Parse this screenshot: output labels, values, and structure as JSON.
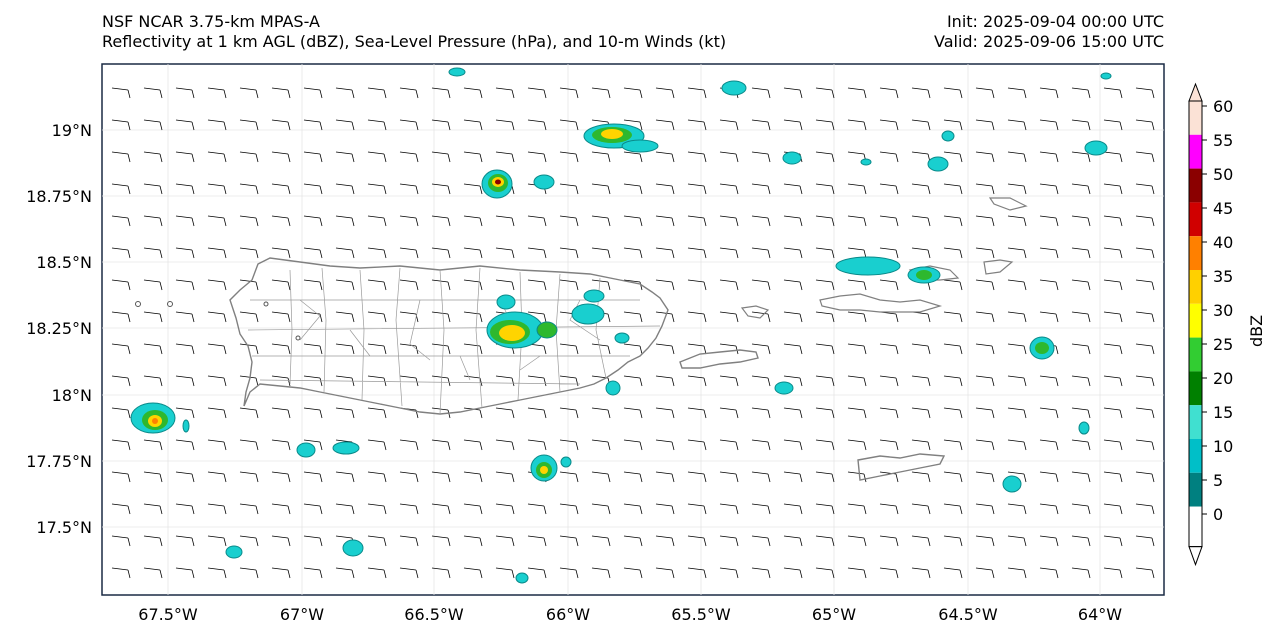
{
  "header": {
    "title_line1": "NSF NCAR 3.75-km MPAS-A",
    "title_line2": "Reflectivity at 1 km AGL (dBZ), Sea-Level Pressure (hPa), and 10-m Winds (kt)",
    "init": "Init: 2025-09-04 00:00 UTC",
    "valid": "Valid: 2025-09-06 15:00 UTC"
  },
  "map": {
    "lon_labels": [
      "67.5°W",
      "67°W",
      "66.5°W",
      "66°W",
      "65.5°W",
      "65°W",
      "64.5°W",
      "64°W"
    ],
    "lat_labels": [
      "19°N",
      "18.75°N",
      "18.5°N",
      "18.25°N",
      "18°N",
      "17.75°N",
      "17.5°N"
    ]
  },
  "colorbar": {
    "label": "dBZ",
    "ticks": [
      "60",
      "55",
      "50",
      "45",
      "40",
      "35",
      "30",
      "25",
      "20",
      "15",
      "10",
      "5",
      "0"
    ],
    "colors": [
      "#fbe2d6",
      "#ff00ff",
      "#8b0000",
      "#d00000",
      "#ff8000",
      "#ffd000",
      "#ffff00",
      "#32cd32",
      "#008000",
      "#40e0d0",
      "#00bfc8",
      "#008080"
    ]
  },
  "style": {
    "coast_color": "#808080",
    "border_color": "#999999",
    "echo_dark": "#0a8a8a",
    "echo_light": "#19cfcf"
  }
}
